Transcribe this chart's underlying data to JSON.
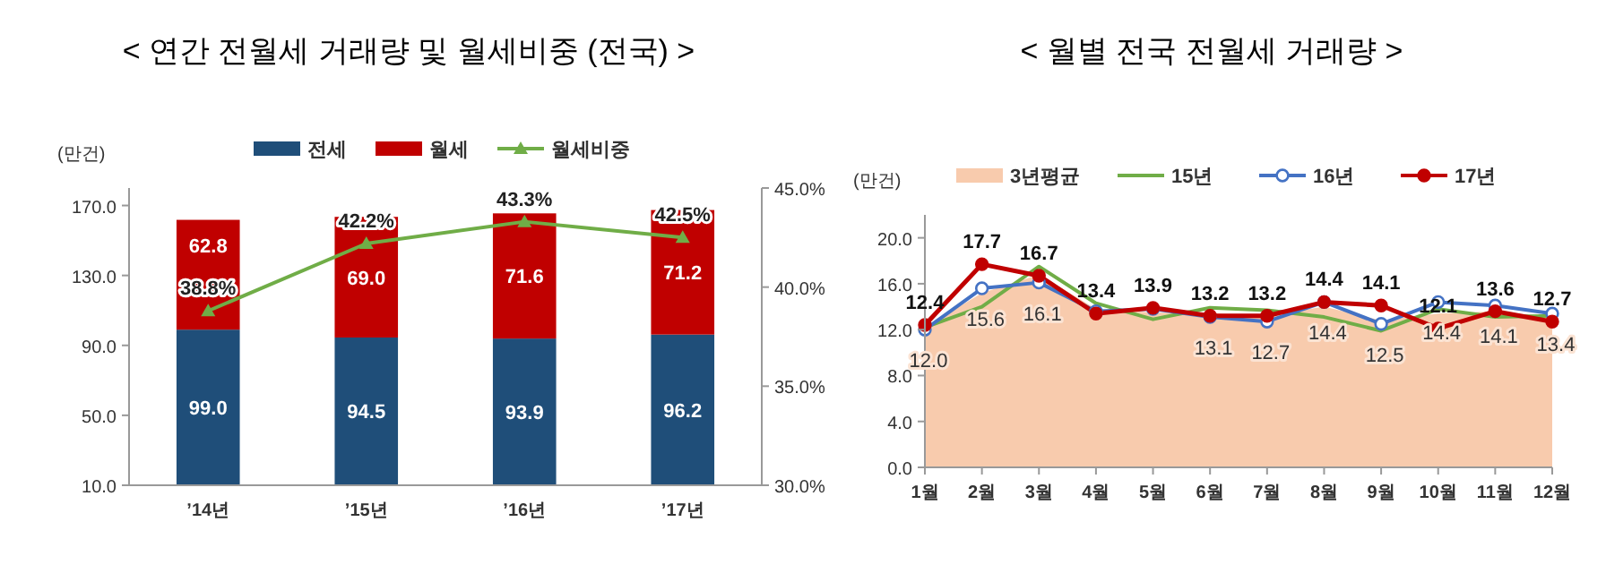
{
  "chart_data": [
    {
      "type": "bar",
      "title": "< 연간 전월세 거래량 및 월세비중 (전국) >",
      "ylabel": "(만건)",
      "categories": [
        "’14년",
        "’15년",
        "’16년",
        "’17년"
      ],
      "stacked": true,
      "legend": "top",
      "grid": false,
      "ylim": [
        10,
        180
      ],
      "yticks": [
        {
          "value": 10,
          "label": "10.0"
        },
        {
          "value": 50,
          "label": "50.0"
        },
        {
          "value": 90,
          "label": "90.0"
        },
        {
          "value": 130,
          "label": "130.0"
        },
        {
          "value": 170,
          "label": "170.0"
        }
      ],
      "y2lim": [
        30,
        45
      ],
      "y2ticks": [
        {
          "value": 30,
          "label": "30.0%"
        },
        {
          "value": 35,
          "label": "35.0%"
        },
        {
          "value": 40,
          "label": "40.0%"
        },
        {
          "value": 45,
          "label": "45.0%"
        }
      ],
      "series": [
        {
          "name": "전세",
          "type": "bar",
          "color": "#1f4e79",
          "values": [
            99.0,
            94.5,
            93.9,
            96.2
          ],
          "value_labels": [
            "99.0",
            "94.5",
            "93.9",
            "96.2"
          ]
        },
        {
          "name": "월세",
          "type": "bar",
          "color": "#c00000",
          "values": [
            62.8,
            69.0,
            71.6,
            71.2
          ],
          "value_labels": [
            "62.8",
            "69.0",
            "71.6",
            "71.2"
          ]
        },
        {
          "name": "월세비중",
          "type": "line",
          "axis": "y2",
          "color": "#70ad47",
          "marker": "triangle",
          "values": [
            38.8,
            42.2,
            43.3,
            42.5
          ],
          "value_labels": [
            "38.8%",
            "42.2%",
            "43.3%",
            "42.5%"
          ]
        }
      ]
    },
    {
      "type": "line",
      "title": "< 월별 전국 전월세 거래량 >",
      "ylabel": "(만건)",
      "categories": [
        "1월",
        "2월",
        "3월",
        "4월",
        "5월",
        "6월",
        "7월",
        "8월",
        "9월",
        "10월",
        "11월",
        "12월"
      ],
      "legend": "top",
      "grid": false,
      "ylim": [
        0,
        22
      ],
      "yticks": [
        {
          "value": 0,
          "label": "0.0"
        },
        {
          "value": 4,
          "label": "4.0"
        },
        {
          "value": 8,
          "label": "8.0"
        },
        {
          "value": 12,
          "label": "12.0"
        },
        {
          "value": 16,
          "label": "16.0"
        },
        {
          "value": 20,
          "label": "20.0"
        }
      ],
      "series": [
        {
          "name": "3년평균",
          "type": "area",
          "color": "#f8cbad",
          "values": [
            12.2,
            15.2,
            16.8,
            13.8,
            13.5,
            13.4,
            13.2,
            14.0,
            12.8,
            13.4,
            13.6,
            13.1
          ]
        },
        {
          "name": "15년",
          "type": "line",
          "color": "#70ad47",
          "marker": "none",
          "values": [
            12.2,
            14.0,
            17.5,
            14.3,
            12.9,
            13.9,
            13.7,
            13.1,
            11.9,
            13.8,
            13.1,
            13.2
          ]
        },
        {
          "name": "16년",
          "type": "line",
          "color": "#4472c4",
          "marker": "circle",
          "values": [
            12.0,
            15.6,
            16.1,
            13.6,
            13.8,
            13.1,
            12.7,
            14.4,
            12.5,
            14.4,
            14.1,
            13.4
          ],
          "value_labels": [
            "12.0",
            "15.6",
            "16.1",
            null,
            null,
            "13.1",
            "12.7",
            "14.4",
            "12.5",
            "14.4",
            "14.1",
            "13.4"
          ]
        },
        {
          "name": "17년",
          "type": "line",
          "color": "#c00000",
          "marker": "circle",
          "values": [
            12.4,
            17.7,
            16.7,
            13.4,
            13.9,
            13.2,
            13.2,
            14.4,
            14.1,
            12.1,
            13.6,
            12.7
          ],
          "value_labels": [
            "12.4",
            "17.7",
            "16.7",
            "13.4",
            "13.9",
            "13.2",
            "13.2",
            "14.4",
            "14.1",
            "12.1",
            "13.6",
            "12.7"
          ]
        }
      ]
    }
  ]
}
